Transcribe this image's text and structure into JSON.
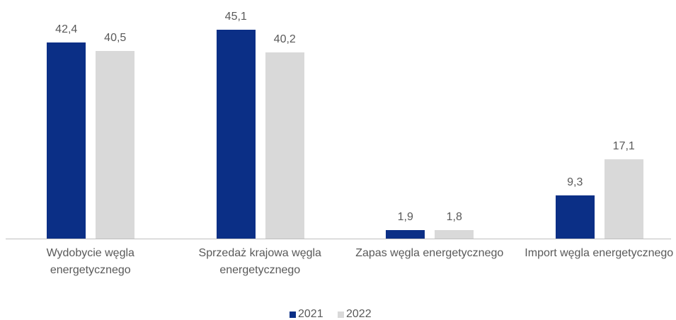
{
  "chart_data": {
    "type": "bar",
    "categories": [
      "Wydobycie węgla energetycznego",
      "Sprzedaż krajowa węgla energetycznego",
      "Zapas węgla energetycznego",
      "Import węgla energetycznego"
    ],
    "series": [
      {
        "name": "2021",
        "color": "#0b2f86",
        "values": [
          42.4,
          45.1,
          1.9,
          9.3
        ],
        "value_labels": [
          "42,4",
          "45,1",
          "1,9",
          "9,3"
        ]
      },
      {
        "name": "2022",
        "color": "#d9d9d9",
        "values": [
          40.5,
          40.2,
          1.8,
          17.1
        ],
        "value_labels": [
          "40,5",
          "40,2",
          "1,8",
          "17,1"
        ]
      }
    ],
    "legend": "bottom"
  }
}
